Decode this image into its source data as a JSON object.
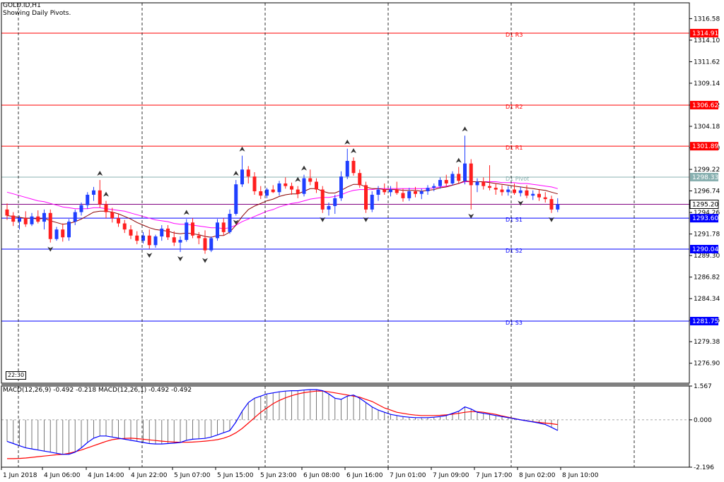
{
  "header": {
    "symbol": "GOLD.ID,H1",
    "subtitle": "Showing Daily Pivots."
  },
  "time_tag": "22:30",
  "macd_label": "MACD(12,26,9) -0.492 -0.218 MACD(12,26,1) -0.492 -0.492",
  "colors": {
    "bull": "#1f3fff",
    "bear": "#ff1f1f",
    "resistance": "#ff0000",
    "support": "#0000ff",
    "pivot": "#88b0b0",
    "ma_fast": "#8b0000",
    "ma_slow": "#ff00ff",
    "macd_main": "#0000ff",
    "macd_signal": "#ff0000"
  },
  "price_axis": {
    "ticks": [
      "1316.58",
      "1314.10",
      "1311.62",
      "1309.14",
      "1306.62",
      "1304.18",
      "1301.70",
      "1299.22",
      "1296.74",
      "1294.26",
      "1291.78",
      "1289.30",
      "1286.82",
      "1284.34",
      "1281.86",
      "1279.38",
      "1276.90"
    ],
    "range": [
      1274.6,
      1318.4
    ]
  },
  "macd_axis": {
    "ticks": [
      "1.567",
      "0.000",
      "-2.196"
    ],
    "range": [
      -2.196,
      1.567
    ]
  },
  "time_axis": {
    "labels": [
      "1 Jun 2018",
      "4 Jun 06:00",
      "4 Jun 14:00",
      "4 Jun 22:00",
      "5 Jun 07:00",
      "5 Jun 15:00",
      "5 Jun 23:00",
      "6 Jun 08:00",
      "6 Jun 16:00",
      "7 Jun 01:00",
      "7 Jun 09:00",
      "7 Jun 17:00",
      "8 Jun 02:00",
      "8 Jun 10:00"
    ]
  },
  "pivots": [
    {
      "label": "D1 R3",
      "value": "1314.91",
      "kind": "resistance"
    },
    {
      "label": "D1 R2",
      "value": "1306.62",
      "kind": "resistance"
    },
    {
      "label": "D1 R1",
      "value": "1301.89",
      "kind": "resistance"
    },
    {
      "label": "D1 Pivot",
      "value": "1298.33",
      "kind": "pivot"
    },
    {
      "label": "D1 S1",
      "value": "1293.60",
      "kind": "support"
    },
    {
      "label": "D1 S2",
      "value": "1290.04",
      "kind": "support"
    },
    {
      "label": "D1 S3",
      "value": "1281.75",
      "kind": "support"
    }
  ],
  "current_price": {
    "value": "1295.20"
  },
  "chart_data": {
    "type": "candlestick",
    "title": "GOLD.ID,H1",
    "candles": [
      [
        1294.6,
        1295.3,
        1293.4,
        1293.9
      ],
      [
        1293.9,
        1294.3,
        1292.7,
        1293.2
      ],
      [
        1293.2,
        1293.9,
        1292.3,
        1293.6
      ],
      [
        1293.6,
        1294.4,
        1292.6,
        1292.9
      ],
      [
        1292.9,
        1294.2,
        1292.7,
        1293.8
      ],
      [
        1293.8,
        1294.5,
        1293.0,
        1293.2
      ],
      [
        1293.2,
        1294.6,
        1292.3,
        1294.2
      ],
      [
        1294.2,
        1294.6,
        1290.8,
        1291.2
      ],
      [
        1291.2,
        1292.6,
        1291.0,
        1292.3
      ],
      [
        1292.3,
        1293.0,
        1290.9,
        1291.4
      ],
      [
        1291.4,
        1293.5,
        1291.0,
        1293.2
      ],
      [
        1293.2,
        1294.6,
        1292.8,
        1294.3
      ],
      [
        1294.3,
        1295.4,
        1293.9,
        1295.1
      ],
      [
        1295.1,
        1296.6,
        1294.7,
        1296.3
      ],
      [
        1296.3,
        1297.2,
        1295.6,
        1296.8
      ],
      [
        1296.8,
        1298.0,
        1294.8,
        1295.2
      ],
      [
        1295.2,
        1295.6,
        1293.6,
        1294.3
      ],
      [
        1294.3,
        1294.8,
        1293.1,
        1293.6
      ],
      [
        1293.6,
        1294.1,
        1292.6,
        1293.0
      ],
      [
        1293.0,
        1293.4,
        1291.9,
        1292.3
      ],
      [
        1292.3,
        1292.8,
        1291.2,
        1291.6
      ],
      [
        1291.6,
        1292.1,
        1290.6,
        1291.0
      ],
      [
        1291.0,
        1292.0,
        1290.7,
        1291.6
      ],
      [
        1291.6,
        1292.3,
        1290.1,
        1290.5
      ],
      [
        1290.5,
        1291.7,
        1290.2,
        1291.5
      ],
      [
        1291.5,
        1292.8,
        1291.0,
        1292.4
      ],
      [
        1292.4,
        1292.8,
        1291.1,
        1291.4
      ],
      [
        1291.4,
        1292.1,
        1290.4,
        1290.8
      ],
      [
        1290.8,
        1291.5,
        1289.7,
        1291.1
      ],
      [
        1291.1,
        1293.5,
        1290.9,
        1293.1
      ],
      [
        1293.1,
        1293.6,
        1291.3,
        1291.6
      ],
      [
        1291.6,
        1292.0,
        1290.6,
        1291.3
      ],
      [
        1291.3,
        1292.2,
        1289.5,
        1289.9
      ],
      [
        1289.9,
        1291.5,
        1289.7,
        1291.3
      ],
      [
        1291.3,
        1293.5,
        1291.0,
        1293.1
      ],
      [
        1293.1,
        1293.6,
        1291.6,
        1292.0
      ],
      [
        1292.0,
        1294.6,
        1291.8,
        1294.1
      ],
      [
        1294.1,
        1298.0,
        1293.9,
        1297.5
      ],
      [
        1297.5,
        1300.8,
        1297.2,
        1299.2
      ],
      [
        1299.2,
        1299.6,
        1297.6,
        1298.4
      ],
      [
        1298.4,
        1298.9,
        1296.3,
        1296.7
      ],
      [
        1296.7,
        1297.3,
        1295.8,
        1296.2
      ],
      [
        1296.2,
        1297.1,
        1295.9,
        1296.9
      ],
      [
        1296.9,
        1297.4,
        1296.5,
        1296.6
      ],
      [
        1296.6,
        1297.9,
        1296.2,
        1297.6
      ],
      [
        1297.6,
        1298.3,
        1297.0,
        1297.3
      ],
      [
        1297.3,
        1297.7,
        1296.3,
        1296.9
      ],
      [
        1296.9,
        1297.3,
        1295.9,
        1296.4
      ],
      [
        1296.4,
        1298.6,
        1296.1,
        1298.2
      ],
      [
        1298.2,
        1299.2,
        1297.4,
        1297.8
      ],
      [
        1297.8,
        1298.2,
        1296.5,
        1296.9
      ],
      [
        1296.9,
        1297.3,
        1294.2,
        1294.6
      ],
      [
        1294.6,
        1295.4,
        1293.9,
        1295.0
      ],
      [
        1295.0,
        1296.3,
        1294.1,
        1295.9
      ],
      [
        1295.9,
        1299.0,
        1295.6,
        1298.4
      ],
      [
        1298.4,
        1301.6,
        1298.1,
        1300.2
      ],
      [
        1300.2,
        1300.6,
        1298.5,
        1298.8
      ],
      [
        1298.8,
        1299.2,
        1297.1,
        1297.4
      ],
      [
        1297.4,
        1297.8,
        1294.2,
        1294.6
      ],
      [
        1294.6,
        1296.7,
        1294.3,
        1296.3
      ],
      [
        1296.3,
        1297.3,
        1295.6,
        1296.9
      ],
      [
        1296.9,
        1297.6,
        1296.3,
        1296.6
      ],
      [
        1296.6,
        1297.3,
        1296.1,
        1296.9
      ],
      [
        1296.9,
        1297.8,
        1296.3,
        1296.5
      ],
      [
        1296.5,
        1297.0,
        1295.5,
        1295.9
      ],
      [
        1295.9,
        1297.1,
        1295.6,
        1296.7
      ],
      [
        1296.7,
        1297.2,
        1296.0,
        1296.4
      ],
      [
        1296.4,
        1297.0,
        1295.8,
        1296.7
      ],
      [
        1296.7,
        1297.4,
        1296.3,
        1297.1
      ],
      [
        1297.1,
        1297.6,
        1296.7,
        1297.3
      ],
      [
        1297.3,
        1298.3,
        1297.0,
        1298.0
      ],
      [
        1298.0,
        1298.6,
        1297.3,
        1297.6
      ],
      [
        1297.6,
        1299.0,
        1297.4,
        1298.7
      ],
      [
        1298.7,
        1299.5,
        1297.6,
        1297.9
      ],
      [
        1297.9,
        1303.1,
        1297.5,
        1299.9
      ],
      [
        1299.9,
        1300.4,
        1294.6,
        1297.4
      ],
      [
        1297.4,
        1298.2,
        1296.6,
        1297.8
      ],
      [
        1297.8,
        1298.3,
        1296.9,
        1297.3
      ],
      [
        1297.3,
        1299.7,
        1296.8,
        1297.1
      ],
      [
        1297.1,
        1297.6,
        1296.3,
        1296.9
      ],
      [
        1296.9,
        1297.4,
        1296.2,
        1296.6
      ],
      [
        1296.6,
        1297.3,
        1296.2,
        1296.9
      ],
      [
        1296.9,
        1297.6,
        1296.3,
        1296.5
      ],
      [
        1296.5,
        1297.2,
        1296.1,
        1296.8
      ],
      [
        1296.8,
        1297.4,
        1295.9,
        1296.2
      ],
      [
        1296.2,
        1296.8,
        1295.7,
        1296.4
      ],
      [
        1296.4,
        1296.9,
        1295.6,
        1296.0
      ],
      [
        1296.0,
        1296.6,
        1295.4,
        1295.8
      ],
      [
        1295.8,
        1296.2,
        1294.2,
        1294.6
      ],
      [
        1294.6,
        1295.9,
        1294.3,
        1295.2
      ]
    ],
    "ma_fast": [
      1293.9,
      1293.8,
      1293.7,
      1293.6,
      1293.6,
      1293.5,
      1293.6,
      1293.3,
      1293.1,
      1292.9,
      1293.0,
      1293.2,
      1293.5,
      1293.9,
      1294.3,
      1294.4,
      1294.4,
      1294.3,
      1294.1,
      1293.8,
      1293.5,
      1293.1,
      1292.8,
      1292.5,
      1292.3,
      1292.2,
      1292.1,
      1291.9,
      1291.8,
      1291.9,
      1291.8,
      1291.7,
      1291.5,
      1291.4,
      1291.6,
      1291.6,
      1292.0,
      1292.8,
      1293.8,
      1294.6,
      1295.0,
      1295.3,
      1295.6,
      1295.8,
      1296.1,
      1296.3,
      1296.4,
      1296.4,
      1296.7,
      1297.0,
      1297.0,
      1296.7,
      1296.5,
      1296.5,
      1296.8,
      1297.2,
      1297.5,
      1297.5,
      1297.2,
      1297.0,
      1297.0,
      1296.9,
      1296.9,
      1296.9,
      1296.8,
      1296.8,
      1296.8,
      1296.7,
      1296.8,
      1296.9,
      1297.1,
      1297.2,
      1297.4,
      1297.6,
      1297.9,
      1297.8,
      1297.8,
      1297.8,
      1297.7,
      1297.6,
      1297.5,
      1297.4,
      1297.3,
      1297.2,
      1297.1,
      1297.0,
      1296.9,
      1296.8,
      1296.6,
      1296.4
    ],
    "ma_slow": [
      1296.6,
      1296.4,
      1296.2,
      1296.0,
      1295.8,
      1295.6,
      1295.5,
      1295.3,
      1295.1,
      1294.9,
      1294.8,
      1294.7,
      1294.7,
      1294.7,
      1294.8,
      1294.8,
      1294.7,
      1294.6,
      1294.5,
      1294.4,
      1294.2,
      1294.0,
      1293.8,
      1293.6,
      1293.4,
      1293.3,
      1293.2,
      1293.0,
      1292.9,
      1292.9,
      1292.8,
      1292.7,
      1292.6,
      1292.5,
      1292.5,
      1292.4,
      1292.5,
      1292.8,
      1293.2,
      1293.5,
      1293.8,
      1294.1,
      1294.4,
      1294.6,
      1294.9,
      1295.1,
      1295.3,
      1295.4,
      1295.6,
      1295.8,
      1295.9,
      1296.0,
      1296.0,
      1296.1,
      1296.3,
      1296.6,
      1296.8,
      1296.9,
      1296.9,
      1296.9,
      1297.0,
      1297.0,
      1297.0,
      1297.0,
      1297.0,
      1297.0,
      1297.0,
      1297.0,
      1297.0,
      1297.1,
      1297.2,
      1297.3,
      1297.4,
      1297.6,
      1297.8,
      1297.8,
      1297.8,
      1297.8,
      1297.8,
      1297.8,
      1297.7,
      1297.7,
      1297.7,
      1297.6,
      1297.6,
      1297.5,
      1297.4,
      1297.3,
      1297.2,
      1297.0
    ],
    "macd_hist": [
      -1.0,
      -1.1,
      -1.2,
      -1.3,
      -1.35,
      -1.4,
      -1.45,
      -1.5,
      -1.55,
      -1.6,
      -1.6,
      -1.5,
      -1.3,
      -1.05,
      -0.85,
      -0.75,
      -0.75,
      -0.8,
      -0.85,
      -0.9,
      -0.95,
      -1.0,
      -1.05,
      -1.1,
      -1.12,
      -1.12,
      -1.1,
      -1.08,
      -1.05,
      -0.95,
      -0.9,
      -0.88,
      -0.86,
      -0.8,
      -0.7,
      -0.6,
      -0.5,
      -0.1,
      0.4,
      0.8,
      1.0,
      1.1,
      1.2,
      1.25,
      1.3,
      1.33,
      1.35,
      1.35,
      1.38,
      1.4,
      1.4,
      1.35,
      1.2,
      1.0,
      0.95,
      1.1,
      1.15,
      1.0,
      0.8,
      0.6,
      0.45,
      0.35,
      0.25,
      0.2,
      0.15,
      0.12,
      0.1,
      0.1,
      0.1,
      0.12,
      0.15,
      0.2,
      0.3,
      0.4,
      0.6,
      0.5,
      0.35,
      0.3,
      0.25,
      0.2,
      0.15,
      0.1,
      0.05,
      0.0,
      -0.05,
      -0.1,
      -0.15,
      -0.22,
      -0.35,
      -0.49
    ],
    "macd_signal": [
      -1.8,
      -1.8,
      -1.79,
      -1.77,
      -1.74,
      -1.71,
      -1.68,
      -1.65,
      -1.62,
      -1.6,
      -1.55,
      -1.48,
      -1.4,
      -1.3,
      -1.2,
      -1.1,
      -1.0,
      -0.92,
      -0.88,
      -0.86,
      -0.85,
      -0.87,
      -0.9,
      -0.93,
      -0.96,
      -0.99,
      -1.01,
      -1.03,
      -1.04,
      -1.04,
      -1.03,
      -1.01,
      -0.99,
      -0.96,
      -0.92,
      -0.85,
      -0.75,
      -0.6,
      -0.4,
      -0.15,
      0.1,
      0.35,
      0.55,
      0.75,
      0.9,
      1.02,
      1.12,
      1.2,
      1.26,
      1.3,
      1.33,
      1.33,
      1.3,
      1.25,
      1.2,
      1.15,
      1.1,
      1.05,
      0.95,
      0.85,
      0.7,
      0.55,
      0.45,
      0.35,
      0.3,
      0.25,
      0.22,
      0.2,
      0.2,
      0.2,
      0.21,
      0.23,
      0.26,
      0.3,
      0.35,
      0.38,
      0.38,
      0.35,
      0.3,
      0.25,
      0.18,
      0.12,
      0.06,
      0.0,
      -0.05,
      -0.09,
      -0.12,
      -0.15,
      -0.18,
      -0.22
    ]
  }
}
